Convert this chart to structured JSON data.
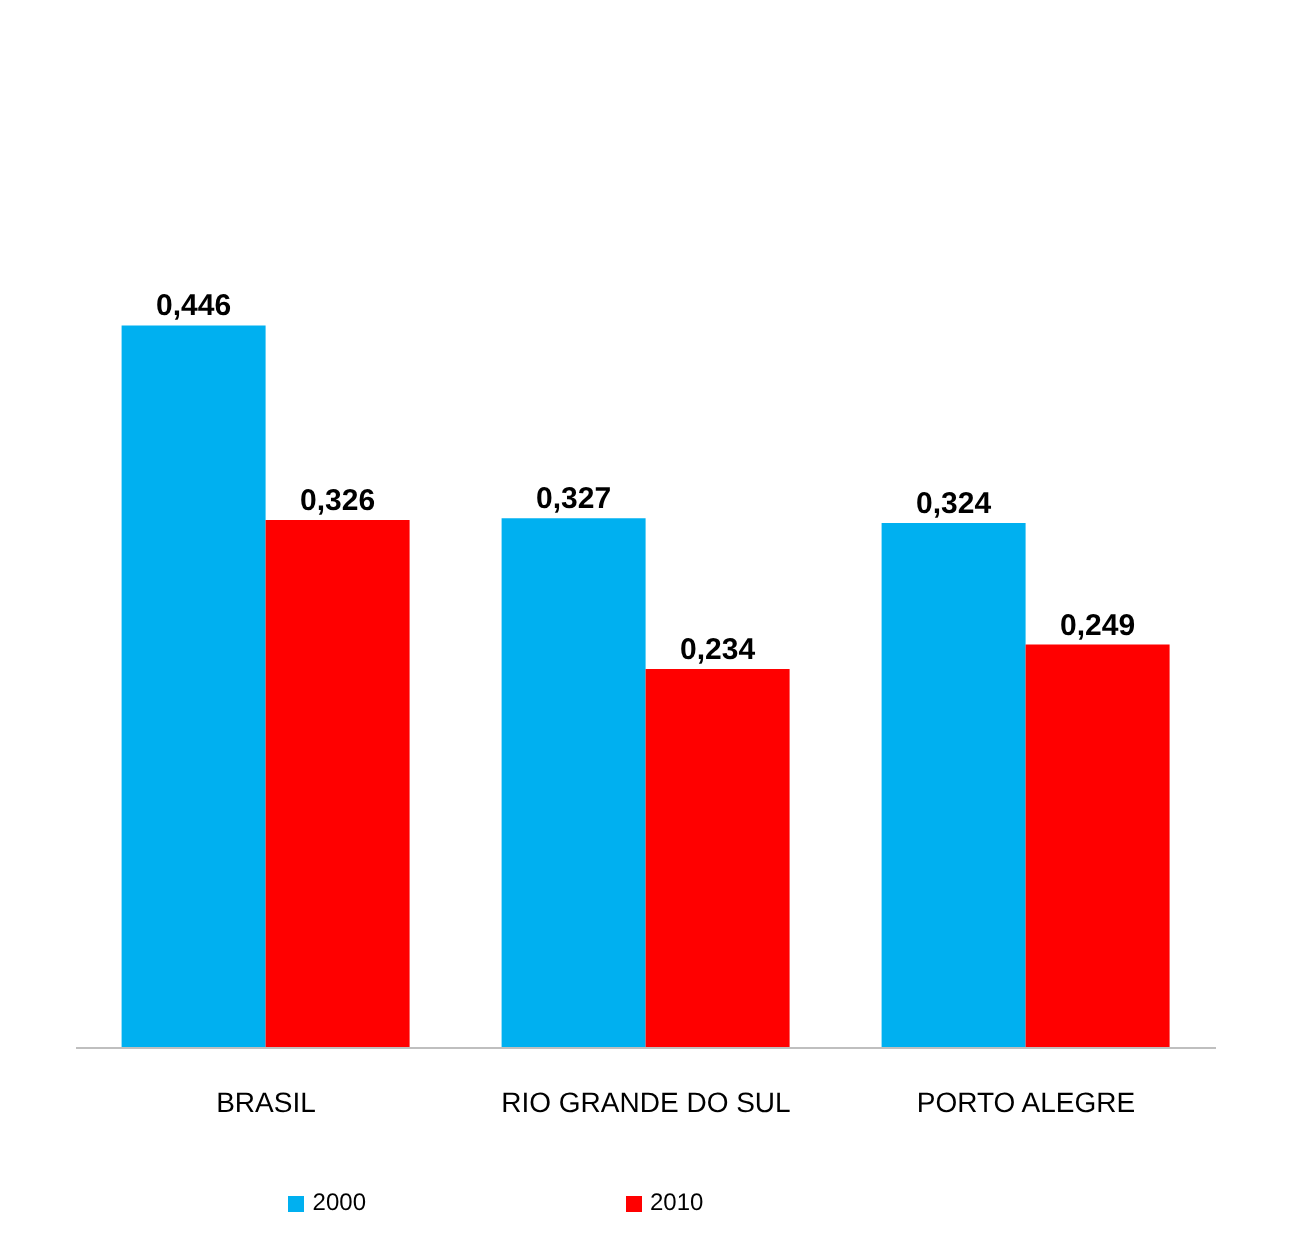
{
  "chart_data": {
    "type": "bar",
    "categories": [
      "BRASIL",
      "RIO GRANDE DO SUL",
      "PORTO ALEGRE"
    ],
    "series": [
      {
        "name": "2000",
        "color": "#00b0f0",
        "values": [
          0.446,
          0.327,
          0.324
        ],
        "value_labels": [
          "0,446",
          "0,327",
          "0,324"
        ]
      },
      {
        "name": "2010",
        "color": "#ff0000",
        "values": [
          0.326,
          0.234,
          0.249
        ],
        "value_labels": [
          "0,326",
          "0,234",
          "0,249"
        ]
      }
    ],
    "tick_labels": "x",
    "legend": "bottom"
  }
}
